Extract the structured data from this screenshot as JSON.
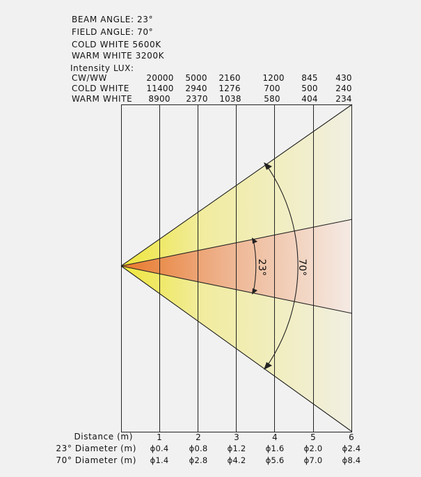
{
  "specs": {
    "beam_angle": "BEAM ANGLE: 23°",
    "field_angle": "FIELD ANGLE: 70°",
    "cold_white": "COLD WHITE 5600K",
    "warm_white": "WARM WHITE 3200K",
    "intensity_title": "Intensity LUX:"
  },
  "intensity_table": {
    "rows": [
      {
        "label": "CW/WW",
        "values": [
          "20000",
          "5000",
          "2160",
          "1200",
          "845",
          "430"
        ]
      },
      {
        "label": "COLD WHITE",
        "values": [
          "11400",
          "2940",
          "1276",
          "700",
          "500",
          "240"
        ]
      },
      {
        "label": "WARM WHITE",
        "values": [
          "8900",
          "2370",
          "1038",
          "580",
          "404",
          "234"
        ]
      }
    ]
  },
  "beam": {
    "beam_angle_label": "23°",
    "field_angle_label": "70°",
    "beam_color": "#e8782a",
    "field_color": "#efe63a"
  },
  "distance_axis": {
    "label": "Distance (m)",
    "values": [
      "1",
      "2",
      "3",
      "4",
      "5",
      "6"
    ]
  },
  "diameters": [
    {
      "label": "23° Diameter (m)",
      "values": [
        "ɸ0.4",
        "ɸ0.8",
        "ɸ1.2",
        "ɸ1.6",
        "ɸ2.0",
        "ɸ2.4"
      ]
    },
    {
      "label": "70° Diameter (m)",
      "values": [
        "ɸ1.4",
        "ɸ2.8",
        "ɸ4.2",
        "ɸ5.6",
        "ɸ7.0",
        "ɸ8.4"
      ]
    }
  ]
}
